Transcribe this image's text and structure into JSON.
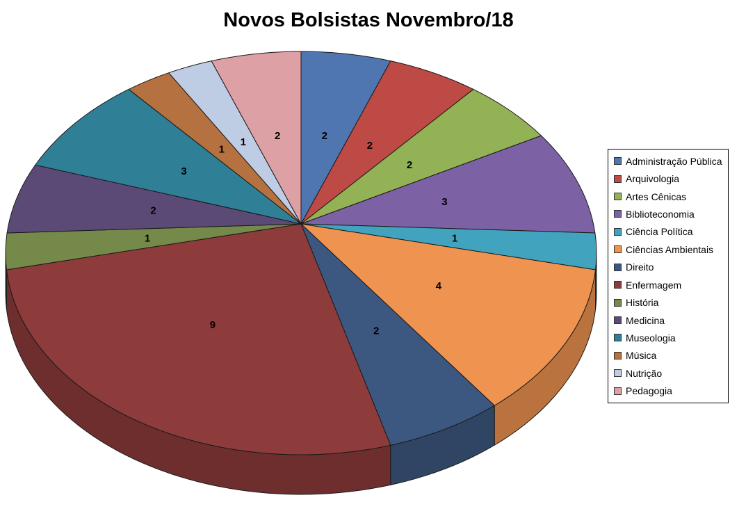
{
  "title": "Novos Bolsistas Novembro/18",
  "chart_data": {
    "type": "pie",
    "variant": "3d",
    "title": "Novos Bolsistas Novembro/18",
    "categories": [
      "Administração Pública",
      "Arquivologia",
      "Artes Cênicas",
      "Biblioteconomia",
      "Ciência Política",
      "Ciências Ambientais",
      "Direito",
      "Enfermagem",
      "História",
      "Medicina",
      "Museologia",
      "Música",
      "Nutrição",
      "Pedagogia"
    ],
    "values": [
      2,
      2,
      2,
      3,
      1,
      4,
      2,
      9,
      1,
      2,
      3,
      1,
      1,
      2
    ],
    "data_labels": [
      "2",
      "2",
      "2",
      "3",
      "1",
      "4",
      "2",
      "9",
      "1",
      "2",
      "3",
      "1",
      "1",
      "2"
    ],
    "colors": [
      "#4F76B0",
      "#BE4A45",
      "#93B155",
      "#7C61A5",
      "#42A3BE",
      "#EF9350",
      "#3D5880",
      "#8E3B3B",
      "#75894A",
      "#5C4A76",
      "#2F7F96",
      "#B5713F",
      "#BFCDE4",
      "#DDA0A4"
    ],
    "start_angle_deg": 0,
    "direction": "clockwise",
    "legend_position": "right",
    "background_color": "#FFFFFF",
    "label_color": "#000000",
    "outline_color": "#1A1A1A"
  }
}
